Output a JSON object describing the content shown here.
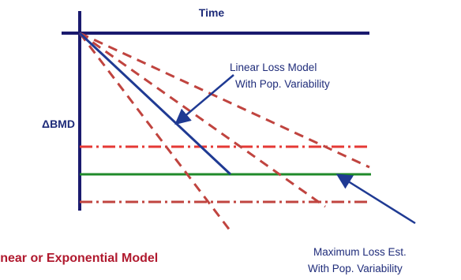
{
  "labels": {
    "time": "Time",
    "delta_symbol": "Δ",
    "bmd": "BMD",
    "linear_loss_line1": "Linear Loss Model",
    "linear_loss_line2": "With Pop. Variability",
    "max_loss_line1": "Maximum Loss Est.",
    "max_loss_line2": "With Pop. Variability",
    "bottom_caption": "Linear or Exponential Model"
  },
  "colors": {
    "axis": "#1a1a6e",
    "navy_text": "#1f2c7a",
    "blue_line": "#1f3a93",
    "red_dash": "#e53935",
    "dark_red_dash": "#c0443f",
    "green_line": "#1f8a2a",
    "caption": "#b0192e"
  }
}
